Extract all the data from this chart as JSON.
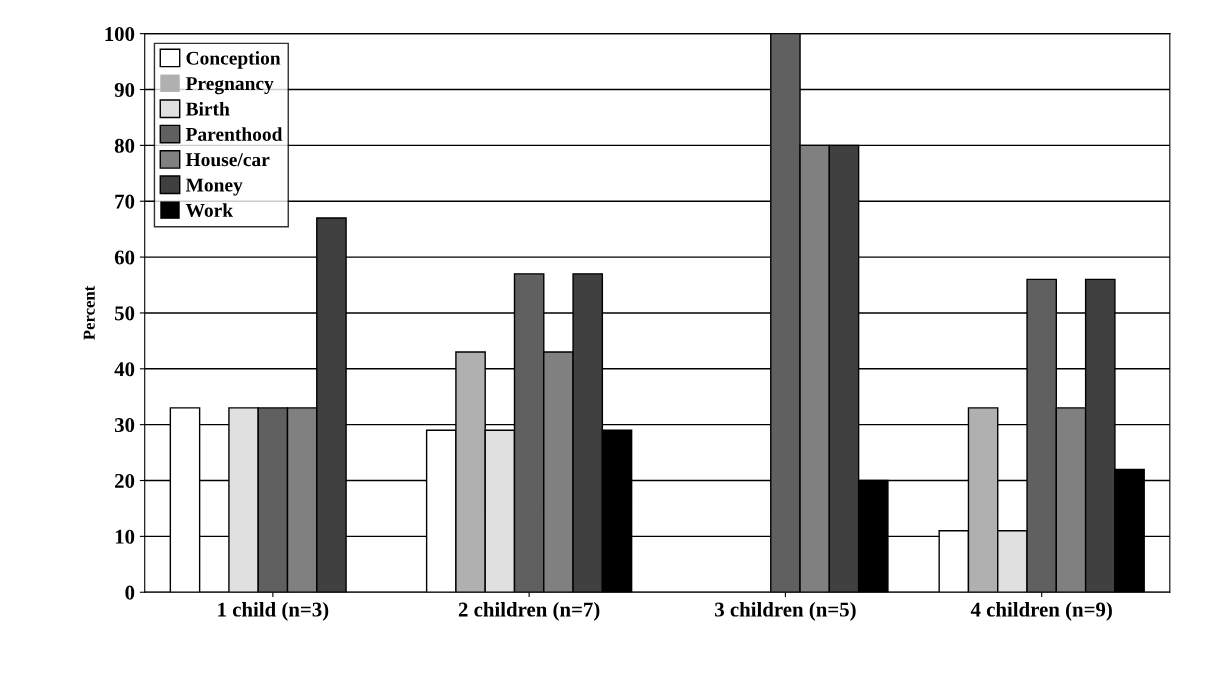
{
  "chart_data": {
    "type": "bar",
    "ylabel": "Percent",
    "categories": [
      "1 child (n=3)",
      "2 children (n=7)",
      "3 children (n=5)",
      "4 children (n=9)"
    ],
    "series": [
      {
        "name": "Conception",
        "color": "#ffffff",
        "values": [
          33,
          29,
          0,
          11
        ]
      },
      {
        "name": "Pregnancy",
        "color": "#b0b0b0",
        "values": [
          0,
          43,
          0,
          33
        ]
      },
      {
        "name": "Birth",
        "color": "#e0e0e0",
        "values": [
          33,
          29,
          0,
          11
        ]
      },
      {
        "name": "Parenthood",
        "color": "#606060",
        "values": [
          33,
          57,
          100,
          56
        ]
      },
      {
        "name": "House/car",
        "color": "#808080",
        "values": [
          33,
          43,
          80,
          33
        ]
      },
      {
        "name": "Money",
        "color": "#404040",
        "values": [
          67,
          57,
          80,
          56
        ]
      },
      {
        "name": "Work",
        "color": "#000000",
        "values": [
          0,
          29,
          20,
          22
        ]
      }
    ],
    "ylim": [
      0,
      100
    ],
    "yticks": [
      0,
      10,
      20,
      30,
      40,
      50,
      60,
      70,
      80,
      90,
      100
    ],
    "grid": "y",
    "legend": "top left"
  }
}
